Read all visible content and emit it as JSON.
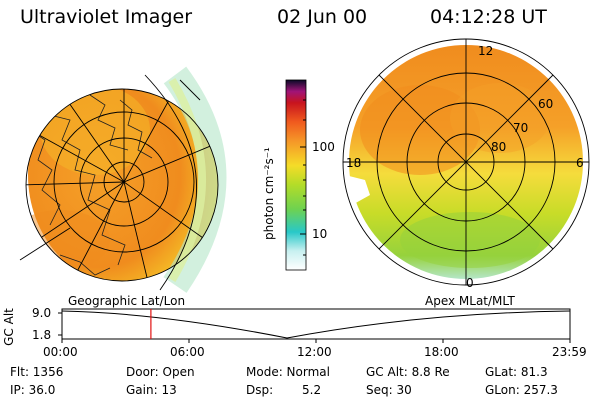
{
  "header": {
    "title": "Ultraviolet Imager",
    "date": "02 Jun 00",
    "time": "04:12:28 UT"
  },
  "colorbar": {
    "unit_label": "photon cm⁻²s⁻¹",
    "ticks": [
      "100",
      "10"
    ]
  },
  "left_map": {
    "caption": "Geographic Lat/Lon"
  },
  "right_map": {
    "caption": "Apex MLat/MLT",
    "mlt_labels": {
      "top": "12",
      "left": "18",
      "right": "6",
      "bottom": "0"
    },
    "lat_labels": [
      "60",
      "70",
      "80"
    ]
  },
  "altitude_plot": {
    "ylabel": "GC Alt",
    "yticks": [
      "9.0",
      "1.8"
    ],
    "xticks": [
      "00:00",
      "06:00",
      "12:00",
      "18:00",
      "23:59"
    ],
    "cursor_time_hours": 4.2,
    "min_time_hours": 11.0
  },
  "status": {
    "flt": "Flt: 1356",
    "ip": "IP: 36.0",
    "door": "Door: Open",
    "gain": "Gain: 13",
    "mode": "Mode: Normal",
    "dsp_label": "Dsp:",
    "dsp_value": "5.2",
    "gc_alt": "GC Alt: 8.8 Re",
    "seq": "Seq: 30",
    "glat": "GLat: 81.3",
    "glon": "GLon: 257.3"
  },
  "colors": {
    "orange": "#f08c1e",
    "yellow": "#f5d228",
    "green": "#a0d22d",
    "cursor": "#e01010"
  }
}
